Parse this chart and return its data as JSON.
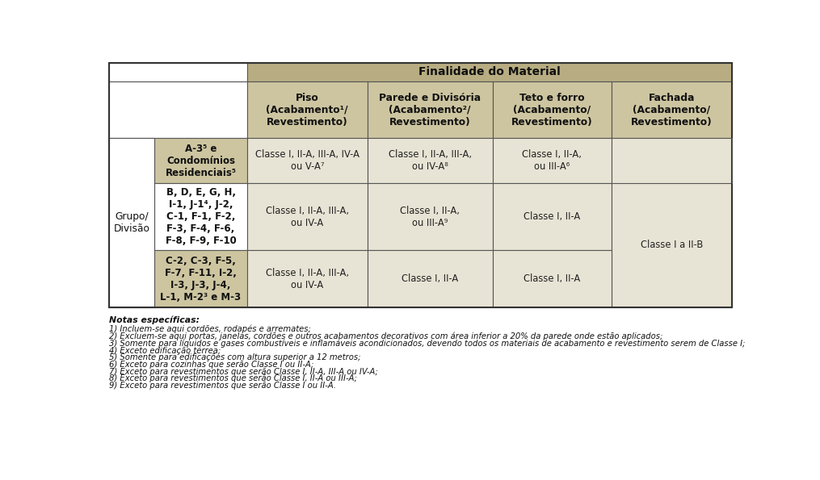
{
  "background_color": "#ffffff",
  "header_bg": "#b8ad82",
  "subheader_bg": "#cdc5a0",
  "group_name_bg": "#cdc5a0",
  "data_bg_light": "#e8e4d5",
  "data_bg_white": "#f5f3ec",
  "fachada_span_bg": "#e8e4d5",
  "row1_fachada_bg": "#e8e4d5",
  "title_finalidade": "Finalidade do Material",
  "col_headers": [
    "Piso\n(Acabamento¹/\nRevestimento)",
    "Parede e Divisória\n(Acabamento²/\nRevestimento)",
    "Teto e forro\n(Acabamento/\nRevestimento)",
    "Fachada\n(Acabamento/\nRevestimento)"
  ],
  "row_label": "Grupo/\nDivisão",
  "row1_group": "A-3⁵ e\nCondomínios\nResidenciais⁵",
  "row1_col1": "Classe I, II-A, III-A, IV-A\nou V-A⁷",
  "row1_col2": "Classe I, II-A, III-A,\nou IV-A⁸",
  "row1_col3": "Classe I, II-A,\nou III-A⁶",
  "row2_group": "B, D, E, G, H,\nI-1, J-1⁴, J-2,\nC-1, F-1, F-2,\nF-3, F-4, F-6,\nF-8, F-9, F-10",
  "row2_col1": "Classe I, II-A, III-A,\nou IV-A",
  "row2_col2": "Classe I, II-A,\nou III-A⁹",
  "row2_col3": "Classe I, II-A",
  "fachada_text": "Classe I a II-B",
  "row3_group": "C-2, C-3, F-5,\nF-7, F-11, I-2,\nI-3, J-3, J-4,\nL-1, M-2³ e M-3",
  "row3_col1": "Classe I, II-A, III-A,\nou IV-A",
  "row3_col2": "Classe I, II-A",
  "row3_col3": "Classe I, II-A",
  "notes_title": "Notas específicas:",
  "notes": [
    "1) Incluem-se aqui cordões, rodapés e arremates;",
    "2) Excluem-se aqui portas, janelas, cordões e outros acabamentos decorativos com área inferior a 20% da parede onde estão aplicados;",
    "3) Somente para líquidos e gases combustíveis e inflamáveis acondicionados, devendo todos os materiais de acabamento e revestimento serem de Classe I;",
    "4) Exceto edificação térrea;",
    "5) Somente para edificações com altura superior a 12 metros;",
    "6) Exceto para cozinhas que serão Classe I ou II-A;",
    "7) Exceto para revestimentos que serão Classe I, II-A, III-A ou IV-A;",
    "8) Exceto para revestimentos que serão Classe I, II-A ou III-A;",
    "9) Exceto para revestimentos que serão Classe I ou II-A."
  ]
}
